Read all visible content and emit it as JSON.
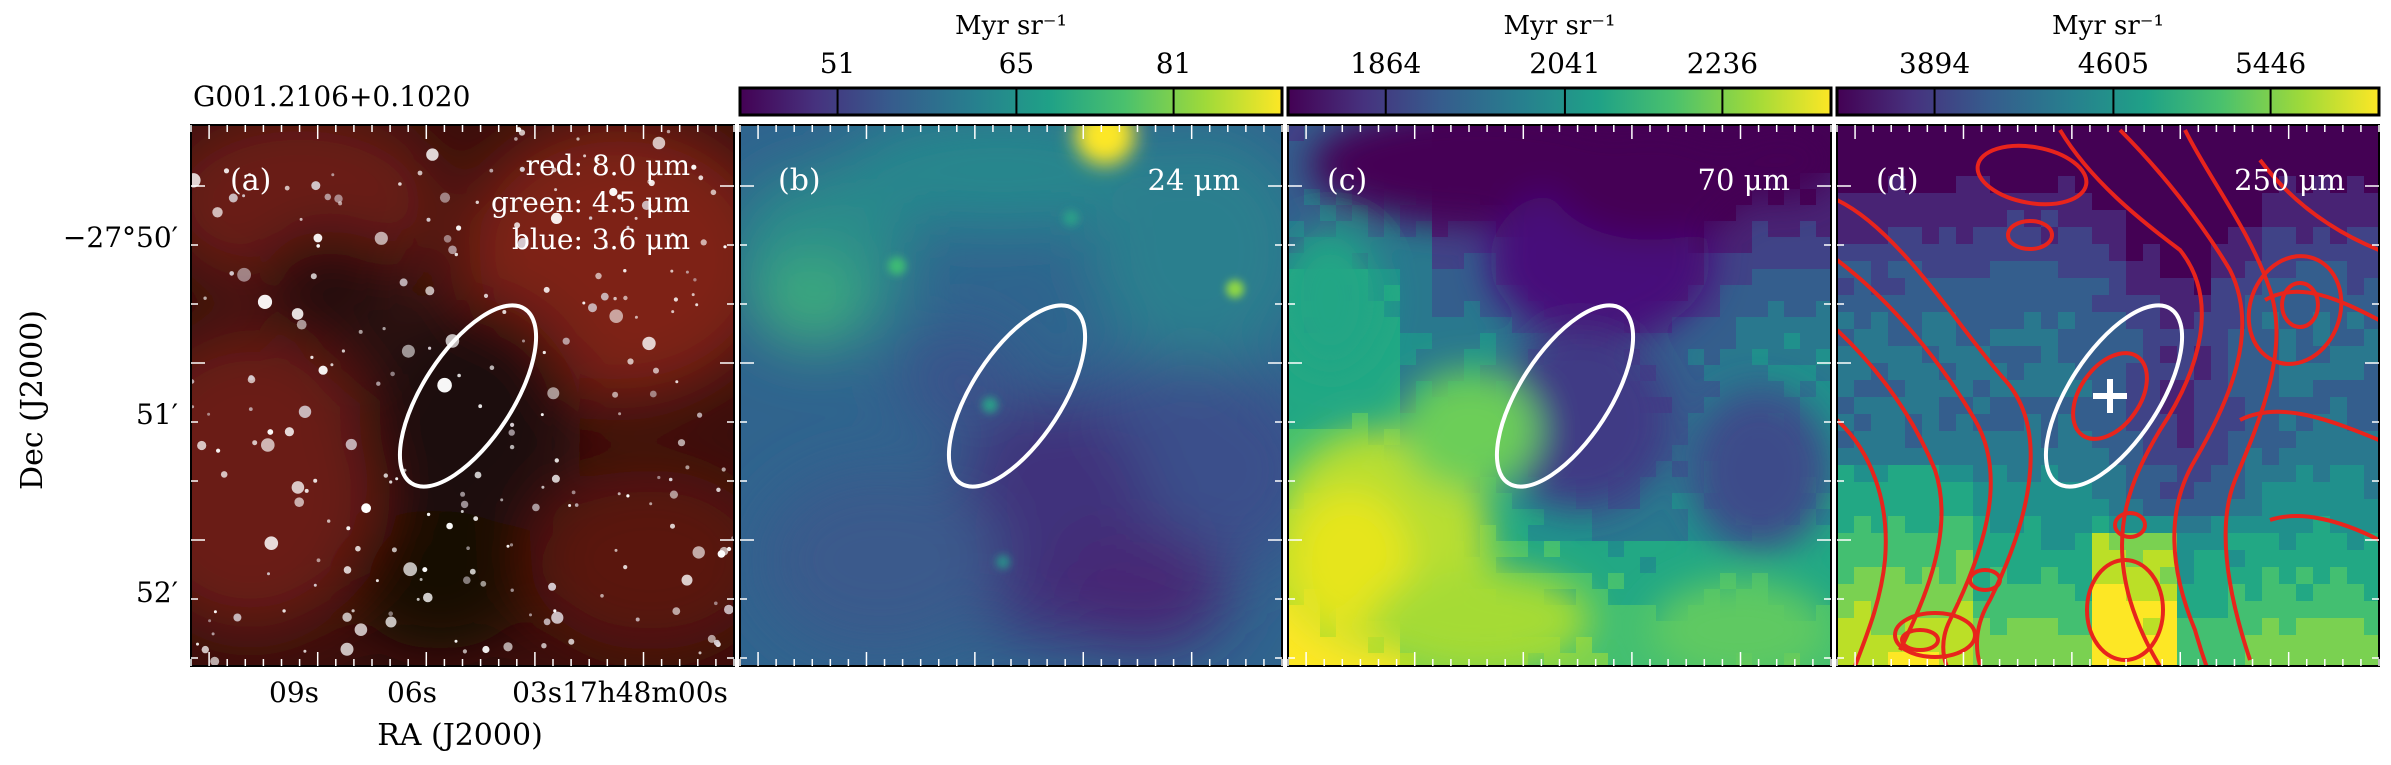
{
  "figure": {
    "source_name": "G001.2106+0.1020",
    "y_axis_title": "Dec (J2000)",
    "x_axis_title": "RA (J2000)",
    "dec_ticks": [
      "−27°50′",
      "51′",
      "52′"
    ],
    "ra_ticks": [
      "09s",
      "06s",
      "03s17h48m00s"
    ]
  },
  "panels": [
    {
      "id": "a",
      "tag": "(a)",
      "legend": [
        "red: 8.0 μm",
        "green: 4.5 μm",
        "blue: 3.6 μm"
      ],
      "colors": {
        "bg": "#3a0f0c",
        "red": "#8a2218",
        "dark": "#1a0a08",
        "star": "#ffffff"
      }
    },
    {
      "id": "b",
      "tag": "(b)",
      "wavelength": "24 μm",
      "colorbar": {
        "unit": "Myr sr⁻¹",
        "ticks": [
          "51",
          "65",
          "81"
        ]
      }
    },
    {
      "id": "c",
      "tag": "(c)",
      "wavelength": "70 μm",
      "colorbar": {
        "unit": "Myr sr⁻¹",
        "ticks": [
          "1864",
          "2041",
          "2236"
        ]
      }
    },
    {
      "id": "d",
      "tag": "(d)",
      "wavelength": "250 μm",
      "colorbar": {
        "unit": "Myr sr⁻¹",
        "ticks": [
          "3894",
          "4605",
          "5446"
        ]
      },
      "contour_color": "#e8241c"
    }
  ],
  "aperture_color": "#ffffff"
}
